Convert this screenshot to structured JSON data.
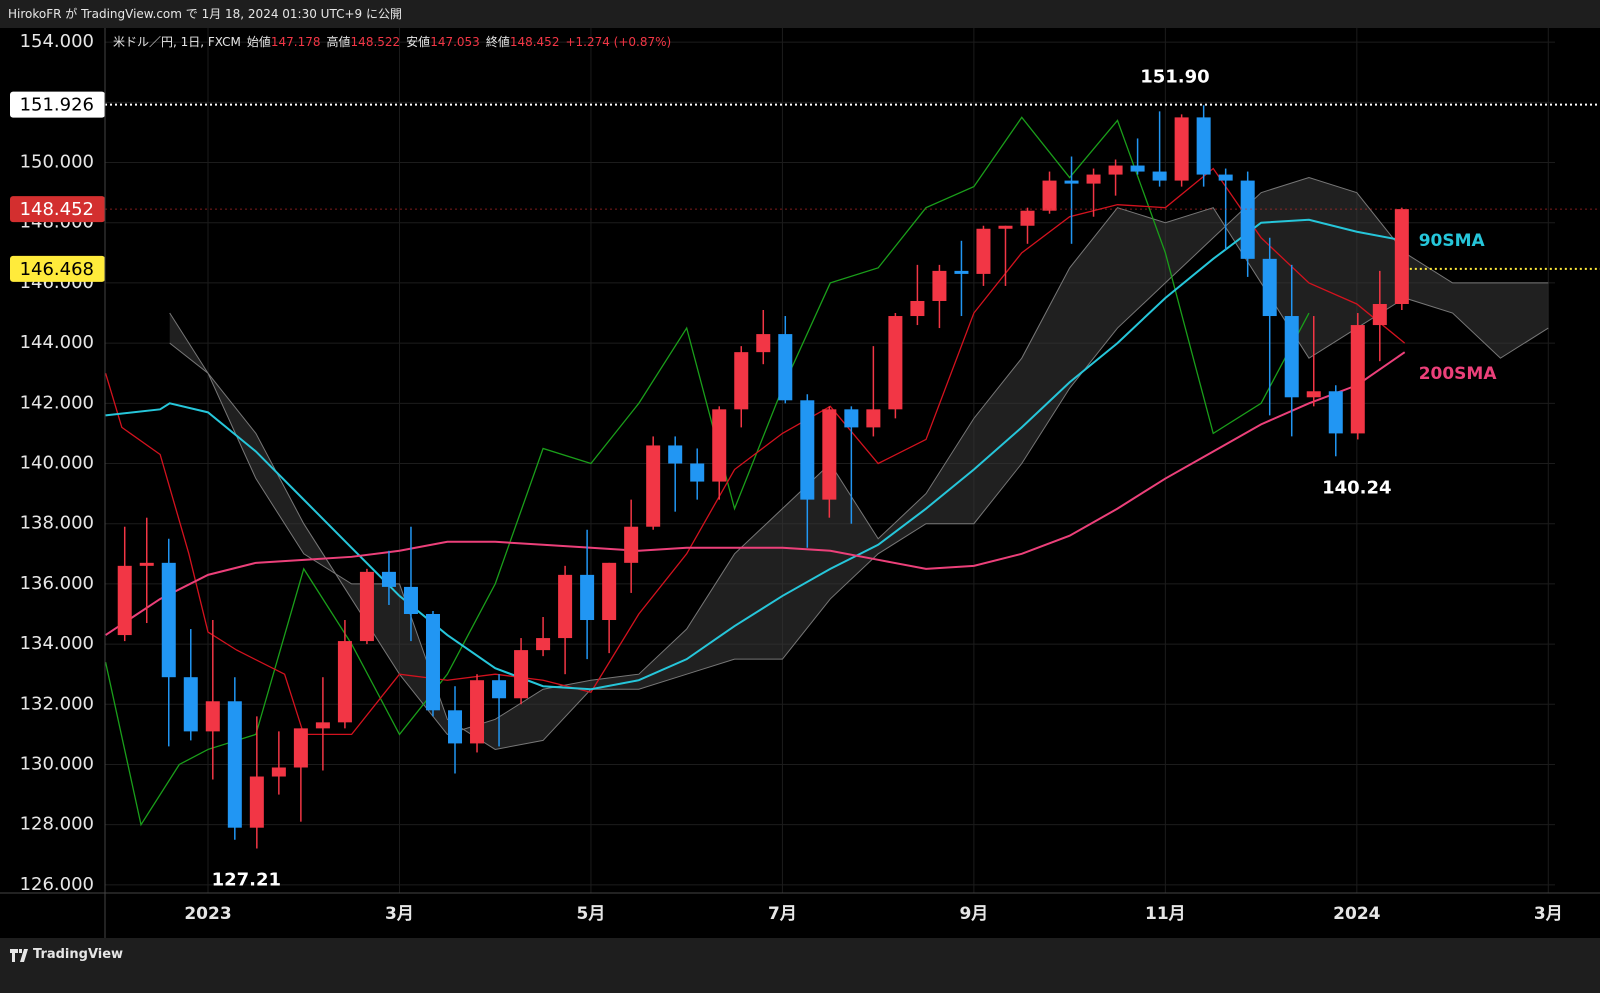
{
  "header": "HirokoFR が TradingView.com で 1月 18, 2024 01:30 UTC+9 に公開",
  "footer": "TradingView",
  "chart_data": {
    "type": "candlestick",
    "symbol": "米ドル／円, 1日, FXCM",
    "ohlc_legend": [
      {
        "label": "始値",
        "value": 147.178
      },
      {
        "label": "高値",
        "value": 148.522
      },
      {
        "label": "安値",
        "value": 147.053
      },
      {
        "label": "終値",
        "value": 148.452
      }
    ],
    "change": "+1.274 (+0.87%)",
    "up_color": "#f23645",
    "down_color": "#2196f3",
    "grid": true,
    "ylim": [
      125.73,
      154.47
    ],
    "yticks": [
      {
        "value": 126,
        "label": "126.000"
      },
      {
        "value": 128,
        "label": "128.000"
      },
      {
        "value": 130,
        "label": "130.000"
      },
      {
        "value": 132,
        "label": "132.000"
      },
      {
        "value": 134,
        "label": "134.000"
      },
      {
        "value": 136,
        "label": "136.000"
      },
      {
        "value": 138,
        "label": "138.000"
      },
      {
        "value": 140,
        "label": "140.000"
      },
      {
        "value": 142,
        "label": "142.000"
      },
      {
        "value": 144,
        "label": "144.000"
      },
      {
        "value": 146,
        "label": "146.000"
      },
      {
        "value": 148,
        "label": "148.000"
      },
      {
        "value": 150,
        "label": "150.000"
      },
      {
        "value": 152,
        "label": "152.000"
      },
      {
        "value": 154,
        "label": "154.000"
      }
    ],
    "xlim": [
      -1.076,
      14.07
    ],
    "xticks": [
      {
        "value": 0,
        "label": "2023"
      },
      {
        "value": 2,
        "label": "3月"
      },
      {
        "value": 4,
        "label": "5月"
      },
      {
        "value": 6,
        "label": "7月"
      },
      {
        "value": 8,
        "label": "9月"
      },
      {
        "value": 10,
        "label": "11月"
      },
      {
        "value": 12,
        "label": "2024"
      },
      {
        "value": 14,
        "label": "3月"
      }
    ],
    "candles": {
      "x": [
        -0.87,
        -0.64,
        -0.41,
        -0.18,
        0.05,
        0.28,
        0.51,
        0.74,
        0.97,
        1.2,
        1.43,
        1.66,
        1.89,
        2.12,
        2.35,
        2.58,
        2.81,
        3.04,
        3.27,
        3.5,
        3.73,
        3.96,
        4.19,
        4.42,
        4.65,
        4.88,
        5.11,
        5.34,
        5.57,
        5.8,
        6.03,
        6.26,
        6.49,
        6.72,
        6.95,
        7.18,
        7.41,
        7.64,
        7.87,
        8.1,
        8.33,
        8.56,
        8.79,
        9.02,
        9.25,
        9.48,
        9.71,
        9.94,
        10.17,
        10.4,
        10.63,
        10.86,
        11.09,
        11.32,
        11.55,
        11.78,
        12.01,
        12.24,
        12.47
      ],
      "open": [
        134.3,
        136.6,
        136.7,
        132.9,
        131.1,
        132.1,
        127.9,
        129.6,
        129.9,
        131.2,
        131.4,
        134.1,
        136.4,
        135.9,
        135.0,
        131.8,
        130.7,
        132.8,
        132.2,
        133.8,
        134.2,
        136.3,
        134.8,
        136.7,
        137.9,
        140.6,
        140.0,
        139.4,
        141.8,
        143.7,
        144.3,
        142.1,
        138.8,
        141.8,
        141.2,
        141.8,
        144.9,
        145.4,
        146.4,
        146.3,
        147.8,
        147.9,
        148.4,
        149.4,
        149.3,
        149.6,
        149.9,
        149.7,
        149.4,
        151.5,
        149.6,
        149.4,
        146.8,
        144.9,
        142.2,
        142.4,
        141.0,
        144.6,
        145.3
      ],
      "high": [
        137.9,
        138.2,
        137.5,
        134.5,
        134.8,
        132.9,
        131.6,
        131.1,
        131.2,
        132.9,
        134.8,
        136.5,
        137.1,
        137.9,
        135.1,
        132.6,
        133.0,
        133.0,
        134.2,
        134.9,
        136.6,
        137.8,
        136.7,
        138.8,
        140.9,
        140.9,
        140.5,
        141.9,
        143.9,
        145.1,
        144.9,
        142.3,
        141.9,
        141.9,
        143.9,
        145.0,
        146.6,
        146.6,
        147.4,
        147.9,
        147.9,
        148.5,
        149.7,
        150.2,
        149.8,
        150.1,
        150.8,
        151.7,
        151.6,
        151.9,
        149.8,
        149.7,
        147.5,
        146.6,
        144.9,
        142.6,
        145.0,
        146.4,
        148.5
      ],
      "low": [
        134.1,
        134.7,
        130.6,
        130.8,
        129.5,
        127.5,
        127.21,
        129.0,
        128.1,
        129.8,
        131.2,
        134.0,
        135.3,
        134.1,
        131.6,
        129.7,
        130.4,
        130.6,
        132.0,
        133.6,
        133.0,
        133.5,
        133.7,
        135.7,
        137.8,
        138.4,
        138.8,
        138.8,
        141.2,
        143.3,
        142.0,
        137.2,
        138.2,
        138.0,
        140.9,
        141.5,
        144.6,
        144.5,
        144.9,
        145.9,
        145.9,
        147.3,
        148.3,
        147.3,
        148.2,
        148.9,
        149.6,
        149.2,
        149.2,
        149.2,
        147.1,
        146.2,
        141.6,
        140.9,
        141.9,
        140.24,
        140.8,
        143.4,
        145.1
      ],
      "close": [
        136.6,
        136.7,
        132.9,
        131.1,
        132.1,
        127.9,
        129.6,
        129.9,
        131.2,
        131.4,
        134.1,
        136.4,
        135.9,
        135.0,
        131.8,
        130.7,
        132.8,
        132.2,
        133.8,
        134.2,
        136.3,
        134.8,
        136.7,
        137.9,
        140.6,
        140.0,
        139.4,
        141.8,
        143.7,
        144.3,
        142.1,
        138.8,
        141.8,
        141.2,
        141.8,
        144.9,
        145.4,
        146.4,
        146.3,
        147.8,
        147.9,
        148.4,
        149.4,
        149.3,
        149.6,
        149.9,
        149.7,
        149.4,
        151.5,
        149.6,
        149.4,
        146.8,
        144.9,
        142.2,
        142.4,
        141.0,
        144.6,
        145.3,
        148.452
      ]
    },
    "cloud": {
      "color": "#3a3a3a",
      "x": [
        -0.4,
        0,
        0.5,
        1,
        1.5,
        2,
        2.5,
        3,
        3.5,
        4,
        4.5,
        5,
        5.5,
        6,
        6.5,
        7,
        7.5,
        8,
        8.5,
        9,
        9.5,
        10,
        10.5,
        11,
        11.5,
        12,
        12.5,
        13,
        13.5,
        14
      ],
      "span_a": [
        145.0,
        143.0,
        141.0,
        138.0,
        135.5,
        133.0,
        131.0,
        131.5,
        132.5,
        132.8,
        133.0,
        134.5,
        137.0,
        138.5,
        140.0,
        137.5,
        139.0,
        141.5,
        143.5,
        146.5,
        148.5,
        148.0,
        148.5,
        146.0,
        143.5,
        144.5,
        145.5,
        145.0,
        143.5,
        144.5
      ],
      "span_b": [
        144.0,
        143.0,
        139.5,
        137.0,
        136.0,
        136.0,
        131.5,
        130.5,
        130.8,
        132.5,
        132.5,
        133.0,
        133.5,
        133.5,
        135.5,
        137.0,
        138.0,
        138.0,
        140.0,
        142.5,
        144.5,
        146.0,
        147.5,
        149.0,
        149.5,
        149.0,
        147.0,
        146.0,
        146.0,
        146.0
      ]
    },
    "series": [
      {
        "color": "#1a9e1a",
        "x": [
          -1.07,
          -0.7,
          -0.3,
          0,
          0.5,
          1,
          1.5,
          2,
          2.5,
          3,
          3.5,
          4,
          4.5,
          5,
          5.5,
          6,
          6.5,
          7,
          7.5,
          8,
          8.5,
          9,
          9.5,
          10,
          10.5,
          11,
          11.5
        ],
        "values": [
          133.4,
          128.0,
          130.0,
          130.5,
          131.0,
          136.5,
          134.0,
          131.0,
          133.0,
          136.0,
          140.5,
          140.0,
          142.0,
          144.5,
          138.5,
          142.5,
          146.0,
          146.5,
          148.5,
          149.2,
          151.5,
          149.5,
          151.4,
          147.0,
          141.0,
          142.0,
          145.0
        ]
      },
      {
        "color": "#d3121e",
        "x": [
          -1.07,
          -0.9,
          -0.5,
          -0.2,
          0,
          0.3,
          0.8,
          1,
          1.5,
          2,
          2.5,
          3,
          3.5,
          4,
          4.5,
          5,
          5.5,
          6,
          6.5,
          7,
          7.5,
          8,
          8.5,
          9,
          9.5,
          10,
          10.5,
          11,
          11.5,
          12,
          12.5
        ],
        "values": [
          143.0,
          141.2,
          140.3,
          137.0,
          134.4,
          133.8,
          133.0,
          131.0,
          131.0,
          133.0,
          132.8,
          133.0,
          132.8,
          132.4,
          135.0,
          137.0,
          139.8,
          141.0,
          141.9,
          140.0,
          140.8,
          145.0,
          147.0,
          148.2,
          148.6,
          148.5,
          149.8,
          147.5,
          146.0,
          145.3,
          144.0
        ]
      },
      {
        "name": "90SMA",
        "color": "#26c6da",
        "x": [
          -1.07,
          -0.5,
          -0.4,
          0,
          0.5,
          1,
          1.5,
          2,
          2.5,
          3,
          3.5,
          4,
          4.5,
          5,
          5.5,
          6,
          6.5,
          7,
          7.5,
          8,
          8.5,
          9,
          9.5,
          10,
          10.5,
          11,
          11.5,
          12,
          12.5
        ],
        "values": [
          141.6,
          141.8,
          142.0,
          141.7,
          140.4,
          138.8,
          137.2,
          135.6,
          134.3,
          133.2,
          132.6,
          132.5,
          132.8,
          133.5,
          134.6,
          135.6,
          136.5,
          137.3,
          138.5,
          139.8,
          141.2,
          142.7,
          144.0,
          145.5,
          146.8,
          148.0,
          148.1,
          147.7,
          147.4
        ]
      },
      {
        "name": "200SMA",
        "color": "#ec407a",
        "x": [
          -1.07,
          -0.5,
          0,
          0.5,
          1,
          1.5,
          2,
          2.5,
          3,
          3.5,
          4,
          4.5,
          5,
          5.5,
          6,
          6.5,
          7,
          7.5,
          8,
          8.5,
          9,
          9.5,
          10,
          10.5,
          11,
          11.5,
          12,
          12.5
        ],
        "values": [
          134.3,
          135.5,
          136.3,
          136.7,
          136.8,
          136.9,
          137.1,
          137.4,
          137.4,
          137.3,
          137.2,
          137.1,
          137.2,
          137.2,
          137.2,
          137.1,
          136.8,
          136.5,
          136.6,
          137.0,
          137.6,
          138.5,
          139.5,
          140.4,
          141.3,
          142.0,
          142.6,
          143.7
        ]
      }
    ],
    "price_lines": [
      {
        "value": 151.926,
        "color": "#ffffff",
        "text_color": "#000000",
        "start": "left"
      },
      {
        "value": 148.452,
        "color": "#d32f2f",
        "text_color": "#ffffff",
        "start": "left"
      },
      {
        "value": 146.468,
        "color": "#ffeb3b",
        "text_color": "#000000",
        "start": "last-bar"
      }
    ],
    "annotations": [
      {
        "text": "151.90",
        "x": 10.1,
        "y": 151.9,
        "position": "above"
      },
      {
        "text": "140.24",
        "x": 12.0,
        "y": 140.24,
        "position": "below"
      },
      {
        "text": "127.21",
        "x": 0.4,
        "y": 127.21,
        "position": "below"
      }
    ]
  }
}
